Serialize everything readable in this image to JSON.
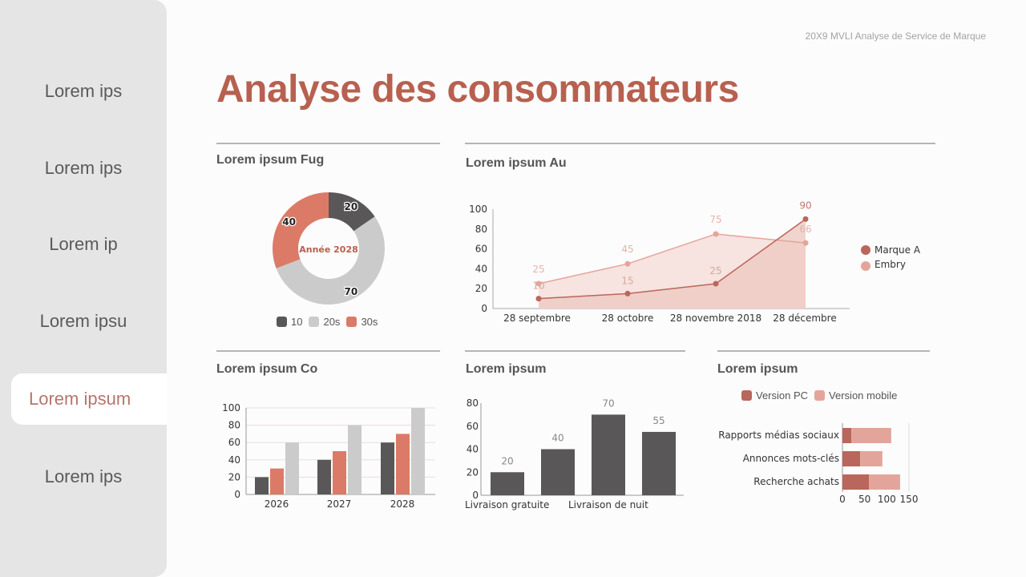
{
  "sidebar": {
    "items": [
      {
        "label": "Lorem ips"
      },
      {
        "label": "Lorem ips"
      },
      {
        "label": "Lorem ip"
      },
      {
        "label": "Lorem ipsu"
      },
      {
        "label": "Lorem ipsum",
        "active": true
      },
      {
        "label": "Lorem ips"
      }
    ]
  },
  "header": {
    "note": "20X9 MVLI Analyse de Service de Marque",
    "title": "Analyse des consommateurs"
  },
  "colors": {
    "accent": "#b8604f",
    "dark": "#595757",
    "gray": "#cccbcb",
    "salmon": "#db7b67",
    "marque_a": "#b9665c",
    "embry": "#e3a59b"
  },
  "panels": {
    "donut": {
      "title": "Lorem ipsum Fug"
    },
    "line": {
      "title": "Lorem ipsum Au"
    },
    "grouped": {
      "title": "Lorem ipsum Co"
    },
    "delivery": {
      "title": "Lorem ipsum"
    },
    "hbar": {
      "title": "Lorem ipsum"
    }
  },
  "chart_data": [
    {
      "type": "pie",
      "title": "Lorem ipsum Fug",
      "center_label": "Année 2028",
      "categories": [
        "10",
        "20s",
        "30s"
      ],
      "values": [
        20,
        70,
        40
      ],
      "legend": [
        "10",
        "20s",
        "30s"
      ],
      "legend_position": "bottom"
    },
    {
      "type": "line",
      "title": "Lorem ipsum Au",
      "categories": [
        "28 septembre",
        "28 octobre",
        "28 novembre 2018",
        "28 décembre"
      ],
      "series": [
        {
          "name": "Marque A",
          "values": [
            10,
            15,
            25,
            90
          ]
        },
        {
          "name": "Embry",
          "values": [
            25,
            45,
            75,
            66
          ]
        }
      ],
      "ylim": [
        0,
        100
      ],
      "yticks": [
        0,
        20,
        40,
        60,
        80,
        100
      ],
      "legend_position": "right"
    },
    {
      "type": "bar",
      "title": "Lorem ipsum Co",
      "categories": [
        "2026",
        "2027",
        "2028"
      ],
      "series": [
        {
          "name": "dark",
          "values": [
            20,
            40,
            60
          ]
        },
        {
          "name": "salmon",
          "values": [
            30,
            50,
            70
          ]
        },
        {
          "name": "gray",
          "values": [
            60,
            80,
            100
          ]
        }
      ],
      "ylim": [
        0,
        100
      ],
      "yticks": [
        0,
        20,
        40,
        60,
        80,
        100
      ],
      "grid": true
    },
    {
      "type": "bar",
      "title": "Lorem ipsum",
      "categories": [
        "Livraison gratuite",
        "",
        "Livraison de nuit",
        ""
      ],
      "values": [
        20,
        40,
        70,
        55
      ],
      "ylim": [
        0,
        80
      ],
      "yticks": [
        0,
        20,
        40,
        60,
        80
      ]
    },
    {
      "type": "bar",
      "orientation": "horizontal",
      "stacked": true,
      "title": "Lorem ipsum",
      "categories": [
        "Rapports médias sociaux",
        "Annonces mots-clés",
        "Recherche achats"
      ],
      "series": [
        {
          "name": "Version PC",
          "values": [
            20,
            40,
            60
          ]
        },
        {
          "name": "Version mobile",
          "values": [
            90,
            50,
            70
          ]
        }
      ],
      "xlim": [
        0,
        150
      ],
      "xticks": [
        0,
        50,
        100,
        150
      ],
      "legend_position": "top"
    }
  ]
}
